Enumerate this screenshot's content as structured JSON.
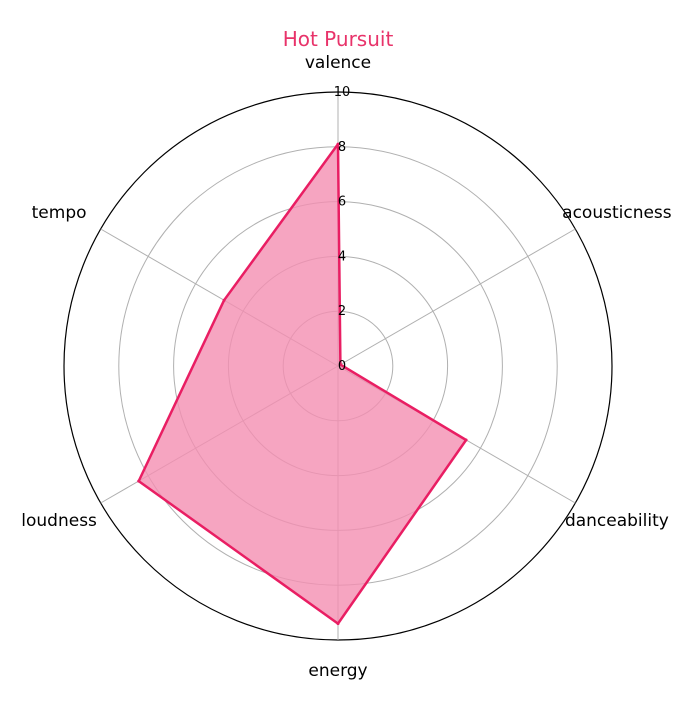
{
  "chart_data": {
    "type": "radar",
    "title": "Hot Pursuit",
    "axes": [
      "valence",
      "acousticness",
      "danceability",
      "energy",
      "loudness",
      "tempo"
    ],
    "series": [
      {
        "values": [
          8.1,
          0.1,
          5.4,
          9.4,
          8.4,
          4.8
        ]
      }
    ],
    "r_range": [
      0,
      10
    ],
    "r_ticks": [
      "0",
      "2",
      "4",
      "6",
      "8",
      "10"
    ],
    "grid": true,
    "colors": {
      "title": "#e8336a",
      "line": "#e91e63",
      "fill": "#f48fb1",
      "grid": "#b0b0b0",
      "outer": "#000000"
    }
  }
}
